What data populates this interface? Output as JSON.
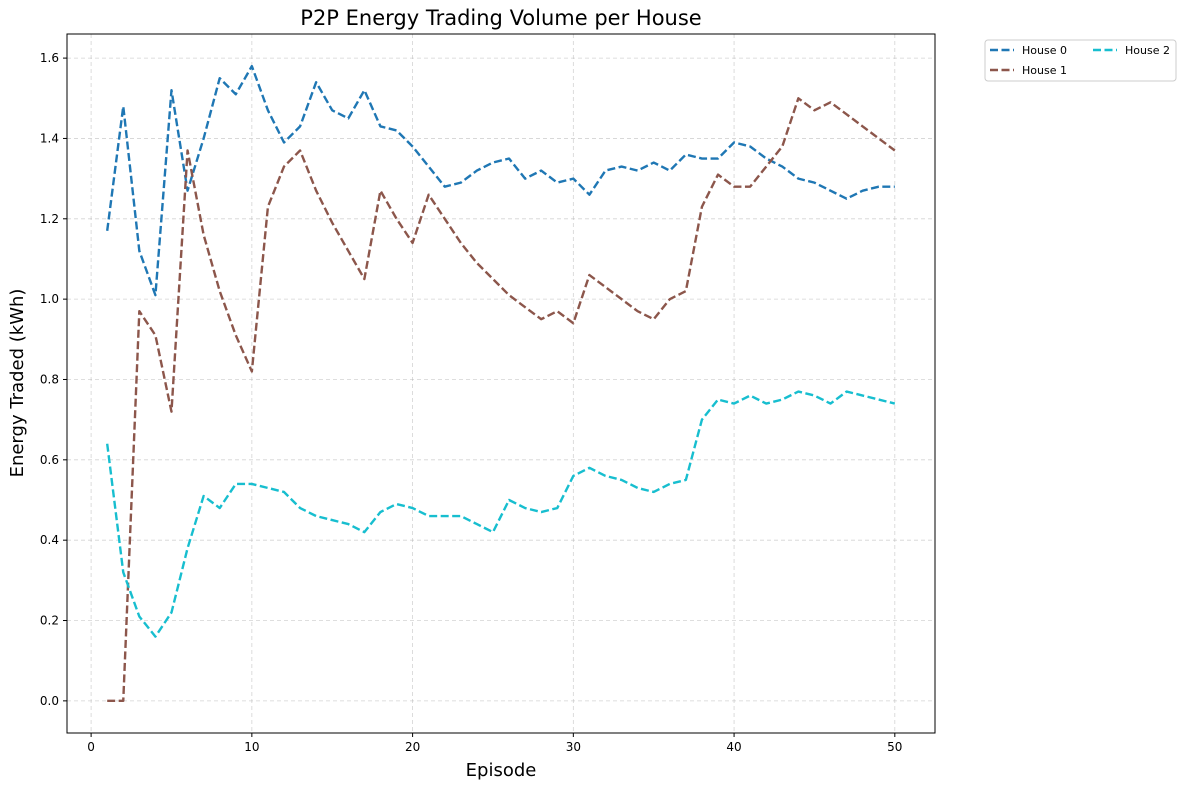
{
  "chart_data": {
    "type": "line",
    "title": "P2P Energy Trading Volume per House",
    "xlabel": "Episode",
    "ylabel": "Energy Traded (kWh)",
    "xlim": [
      -1.5,
      52.5
    ],
    "ylim": [
      -0.08,
      1.66
    ],
    "xticks": [
      0,
      10,
      20,
      30,
      40,
      50
    ],
    "yticks": [
      0.0,
      0.2,
      0.4,
      0.6,
      0.8,
      1.0,
      1.2,
      1.4,
      1.6
    ],
    "ytick_labels": [
      "0.0",
      "0.2",
      "0.4",
      "0.6",
      "0.8",
      "1.0",
      "1.2",
      "1.4",
      "1.6"
    ],
    "grid": true,
    "legend_position": "outside-top-right",
    "x": [
      1,
      2,
      3,
      4,
      5,
      6,
      7,
      8,
      9,
      10,
      11,
      12,
      13,
      14,
      15,
      16,
      17,
      18,
      19,
      20,
      21,
      22,
      23,
      24,
      25,
      26,
      27,
      28,
      29,
      30,
      31,
      32,
      33,
      34,
      35,
      36,
      37,
      38,
      39,
      40,
      41,
      42,
      43,
      44,
      45,
      46,
      47,
      48,
      49,
      50
    ],
    "series": [
      {
        "name": "House 0",
        "color": "#1f77b4",
        "values": [
          1.17,
          1.48,
          1.12,
          1.01,
          1.52,
          1.27,
          1.4,
          1.55,
          1.51,
          1.58,
          1.47,
          1.39,
          1.43,
          1.54,
          1.47,
          1.45,
          1.52,
          1.43,
          1.42,
          1.38,
          1.33,
          1.28,
          1.29,
          1.32,
          1.34,
          1.35,
          1.3,
          1.32,
          1.29,
          1.3,
          1.26,
          1.32,
          1.33,
          1.32,
          1.34,
          1.32,
          1.36,
          1.35,
          1.35,
          1.39,
          1.38,
          1.35,
          1.33,
          1.3,
          1.29,
          1.27,
          1.25,
          1.27,
          1.28,
          1.28
        ]
      },
      {
        "name": "House 1",
        "color": "#8c564b",
        "values": [
          0.0,
          0.0,
          0.97,
          0.91,
          0.72,
          1.37,
          1.16,
          1.02,
          0.91,
          0.82,
          1.23,
          1.33,
          1.37,
          1.27,
          1.19,
          1.12,
          1.05,
          1.27,
          1.2,
          1.14,
          1.26,
          1.2,
          1.14,
          1.09,
          1.05,
          1.01,
          0.98,
          0.95,
          0.97,
          0.94,
          1.06,
          1.03,
          1.0,
          0.97,
          0.95,
          1.0,
          1.02,
          1.23,
          1.31,
          1.28,
          1.28,
          1.33,
          1.38,
          1.5,
          1.47,
          1.49,
          1.46,
          1.43,
          1.4,
          1.37
        ]
      },
      {
        "name": "House 2",
        "color": "#17becf",
        "values": [
          0.64,
          0.32,
          0.21,
          0.16,
          0.22,
          0.38,
          0.51,
          0.48,
          0.54,
          0.54,
          0.53,
          0.52,
          0.48,
          0.46,
          0.45,
          0.44,
          0.42,
          0.47,
          0.49,
          0.48,
          0.46,
          0.46,
          0.46,
          0.44,
          0.42,
          0.5,
          0.48,
          0.47,
          0.48,
          0.56,
          0.58,
          0.56,
          0.55,
          0.53,
          0.52,
          0.54,
          0.55,
          0.7,
          0.75,
          0.74,
          0.76,
          0.74,
          0.75,
          0.77,
          0.76,
          0.74,
          0.77,
          0.76,
          0.75,
          0.74
        ]
      }
    ]
  }
}
